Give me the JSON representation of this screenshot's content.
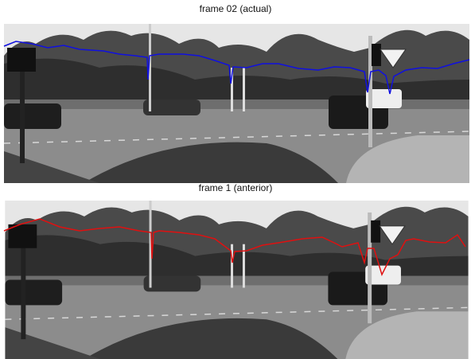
{
  "panels": [
    {
      "title": "frame 02 (actual)"
    },
    {
      "title": "frame 1 (anterior)"
    }
  ]
}
